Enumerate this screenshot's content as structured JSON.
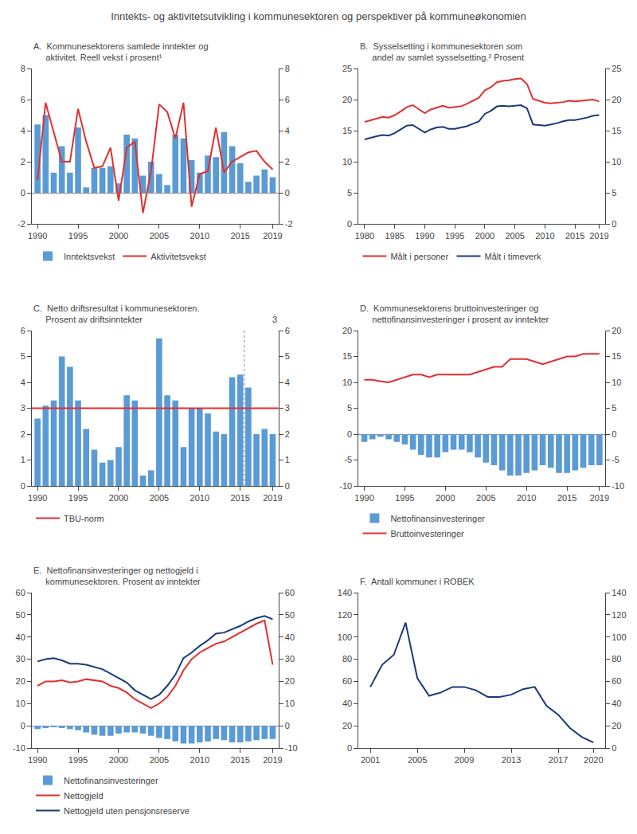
{
  "title": "Inntekts- og aktivitetsutvikling i kommunesektoren og perspektiver på kommuneøkonomien",
  "chart_data": [
    {
      "type": "bar",
      "title": "A.  Kommunesektorens samlede inntekter og\n     aktivitet. Reell vekst i prosent¹",
      "x": [
        1990,
        1991,
        1992,
        1993,
        1994,
        1995,
        1996,
        1997,
        1998,
        1999,
        2000,
        2001,
        2002,
        2003,
        2004,
        2005,
        2006,
        2007,
        2008,
        2009,
        2010,
        2011,
        2012,
        2013,
        2014,
        2015,
        2016,
        2017,
        2018,
        2019
      ],
      "xlim": [
        1989.3,
        2019.7
      ],
      "xticks": [
        1990,
        1995,
        2000,
        2005,
        2010,
        2015,
        2019
      ],
      "ylim": [
        -2,
        8
      ],
      "yticks": [
        -2,
        0,
        2,
        4,
        6,
        8
      ],
      "y2lim": [
        -2,
        8
      ],
      "y2ticks": [
        -2,
        0,
        2,
        4,
        6,
        8
      ],
      "grid": false,
      "series": [
        {
          "name": "Inntektsvekst",
          "type": "bar",
          "color": "#5b9bd5",
          "values": [
            4.4,
            5.0,
            1.3,
            3.0,
            1.3,
            4.2,
            0.35,
            1.6,
            1.6,
            1.7,
            0.6,
            3.75,
            3.5,
            1.1,
            2.0,
            1.2,
            0.5,
            3.75,
            3.5,
            2.1,
            1.3,
            2.4,
            2.3,
            3.9,
            3.0,
            1.9,
            0.7,
            1.1,
            1.5,
            1.0
          ]
        },
        {
          "name": "Aktivitetsvekst",
          "type": "line",
          "color": "#e03030",
          "axis": "y2",
          "values": [
            0.8,
            5.8,
            3.9,
            2.0,
            2.0,
            5.4,
            3.3,
            1.6,
            1.7,
            2.9,
            -0.5,
            2.9,
            3.3,
            -1.3,
            1.4,
            5.7,
            5.2,
            3.5,
            5.8,
            -0.9,
            1.2,
            1.4,
            4.2,
            1.3,
            2.0,
            2.3,
            2.6,
            2.7,
            2.0,
            1.5
          ]
        }
      ]
    },
    {
      "type": "line",
      "title": "B.  Sysselsetting i kommunesektoren som\n     andel av samlet sysselsetting.² Prosent",
      "x": [
        1980,
        1981,
        1982,
        1983,
        1984,
        1985,
        1986,
        1987,
        1988,
        1989,
        1990,
        1991,
        1992,
        1993,
        1994,
        1995,
        1996,
        1997,
        1998,
        1999,
        2000,
        2001,
        2002,
        2003,
        2004,
        2005,
        2006,
        2007,
        2008,
        2009,
        2010,
        2011,
        2012,
        2013,
        2014,
        2015,
        2016,
        2017,
        2018,
        2019
      ],
      "xlim": [
        1979,
        2020
      ],
      "xticks": [
        1980,
        1985,
        1990,
        1995,
        2000,
        2005,
        2010,
        2015,
        2019
      ],
      "ylim": [
        0,
        25
      ],
      "yticks": [
        0,
        5,
        10,
        15,
        20,
        25
      ],
      "y2lim": [
        0,
        25
      ],
      "y2ticks": [
        0,
        5,
        10,
        15,
        20,
        25
      ],
      "grid": false,
      "series": [
        {
          "name": "Målt i personer",
          "type": "line",
          "color": "#e03030",
          "values": [
            16.4,
            16.7,
            17.0,
            17.2,
            17.1,
            17.5,
            18.1,
            18.8,
            19.1,
            18.5,
            17.8,
            18.4,
            18.7,
            19.0,
            18.7,
            18.8,
            18.9,
            19.3,
            19.8,
            20.3,
            21.5,
            22.0,
            22.8,
            23.0,
            23.1,
            23.3,
            23.4,
            22.5,
            20.1,
            19.8,
            19.5,
            19.4,
            19.5,
            19.6,
            19.8,
            19.7,
            19.8,
            19.9,
            20.0,
            19.7
          ]
        },
        {
          "name": "Målt i timeverk",
          "type": "line",
          "color": "#1a3a7a",
          "values": [
            13.6,
            13.9,
            14.1,
            14.3,
            14.2,
            14.6,
            15.2,
            15.8,
            15.9,
            15.3,
            14.7,
            15.2,
            15.5,
            15.6,
            15.3,
            15.3,
            15.5,
            15.7,
            16.1,
            16.5,
            17.7,
            18.2,
            18.9,
            19.0,
            18.9,
            19.0,
            19.1,
            18.6,
            16.0,
            15.9,
            15.8,
            16.0,
            16.2,
            16.5,
            16.7,
            16.7,
            16.9,
            17.1,
            17.4,
            17.5
          ]
        }
      ]
    },
    {
      "type": "bar",
      "title": "C.  Netto driftsresultat i kommunesektoren.\n     Prosent av driftsinntekter",
      "x": [
        1990,
        1991,
        1992,
        1993,
        1994,
        1995,
        1996,
        1997,
        1998,
        1999,
        2000,
        2001,
        2002,
        2003,
        2004,
        2005,
        2006,
        2007,
        2008,
        2009,
        2010,
        2011,
        2012,
        2013,
        2014,
        2015,
        2016,
        2017,
        2018,
        2019
      ],
      "xlim": [
        1989.3,
        2019.7
      ],
      "xticks": [
        1990,
        1995,
        2000,
        2005,
        2010,
        2015,
        2019
      ],
      "ylim": [
        0,
        6
      ],
      "yticks": [
        0,
        1,
        2,
        3,
        4,
        5,
        6
      ],
      "y2lim": [
        0,
        6
      ],
      "y2ticks": [
        0,
        1,
        2,
        3,
        4,
        5,
        6
      ],
      "grid": false,
      "series": [
        {
          "type": "bar",
          "color": "#5b9bd5",
          "values": [
            2.6,
            3.1,
            3.3,
            5.0,
            4.6,
            3.3,
            2.2,
            1.4,
            0.9,
            1.0,
            1.5,
            3.5,
            3.3,
            0.4,
            0.6,
            5.7,
            3.5,
            3.3,
            1.5,
            3.0,
            3.0,
            2.8,
            2.1,
            2.0,
            4.2,
            4.3,
            3.8,
            2.0,
            2.2,
            2.0
          ]
        }
      ],
      "hlines": [
        {
          "value": 3.0,
          "name": "TBU-norm",
          "color": "#e03030"
        }
      ],
      "vlines": [
        {
          "value": 2015.5,
          "line_style": "dotted",
          "color": "#888888"
        }
      ],
      "annotations": [
        {
          "text": "3"
        }
      ]
    },
    {
      "type": "bar",
      "title": "D.  Kommunesektorens bruttoinvesteringer og\n     nettofinansinvesteringer i prosent av inntekter",
      "x": [
        1990,
        1991,
        1992,
        1993,
        1994,
        1995,
        1996,
        1997,
        1998,
        1999,
        2000,
        2001,
        2002,
        2003,
        2004,
        2005,
        2006,
        2007,
        2008,
        2009,
        2010,
        2011,
        2012,
        2013,
        2014,
        2015,
        2016,
        2017,
        2018,
        2019
      ],
      "xlim": [
        1989.3,
        2019.7
      ],
      "xticks": [
        1990,
        1995,
        2000,
        2005,
        2010,
        2015,
        2019
      ],
      "ylim": [
        -10,
        20
      ],
      "yticks": [
        -10,
        -5,
        0,
        5,
        10,
        15,
        20
      ],
      "y2lim": [
        -10,
        20
      ],
      "y2ticks": [
        -10,
        -5,
        0,
        5,
        10,
        15,
        20
      ],
      "grid": false,
      "series": [
        {
          "name": "Nettofinansinvesteringer",
          "type": "bar",
          "color": "#5b9bd5",
          "values": [
            -1.5,
            -1.0,
            -0.5,
            -1.0,
            -1.5,
            -2.0,
            -3.0,
            -4.0,
            -4.5,
            -4.5,
            -3.5,
            -3.0,
            -3.0,
            -3.5,
            -4.5,
            -5.5,
            -6.0,
            -7.0,
            -8.0,
            -8.0,
            -7.5,
            -7.0,
            -6.0,
            -6.5,
            -7.5,
            -7.5,
            -7.0,
            -6.5,
            -6.0,
            -6.0
          ]
        },
        {
          "name": "Bruttoinvesteringer",
          "type": "line",
          "color": "#e03030",
          "axis": "y2",
          "values": [
            10.5,
            10.5,
            10.2,
            10.0,
            10.5,
            11.0,
            11.5,
            11.5,
            11.0,
            11.5,
            11.5,
            11.5,
            11.5,
            11.5,
            12.0,
            12.5,
            13.0,
            13.0,
            14.5,
            14.5,
            14.5,
            14.0,
            13.5,
            14.0,
            14.5,
            15.0,
            15.0,
            15.5,
            15.5,
            15.5
          ]
        }
      ]
    },
    {
      "type": "bar",
      "title": "E.  Nettofinansinvesteringer og nettogjeld i\n     kommunesektoren. Prosent av inntekter",
      "x": [
        1990,
        1991,
        1992,
        1993,
        1994,
        1995,
        1996,
        1997,
        1998,
        1999,
        2000,
        2001,
        2002,
        2003,
        2004,
        2005,
        2006,
        2007,
        2008,
        2009,
        2010,
        2011,
        2012,
        2013,
        2014,
        2015,
        2016,
        2017,
        2018,
        2019
      ],
      "xlim": [
        1989.3,
        2019.7
      ],
      "xticks": [
        1990,
        1995,
        2000,
        2005,
        2010,
        2015,
        2019
      ],
      "ylim": [
        -10,
        60
      ],
      "yticks": [
        -10,
        0,
        10,
        20,
        30,
        40,
        50,
        60
      ],
      "y2lim": [
        -10,
        60
      ],
      "y2ticks": [
        -10,
        0,
        10,
        20,
        30,
        40,
        50,
        60
      ],
      "grid": false,
      "series": [
        {
          "name": "Nettofinansinvesteringer",
          "type": "bar",
          "color": "#5b9bd5",
          "values": [
            -1.5,
            -1.0,
            -0.5,
            -1.0,
            -1.5,
            -2.0,
            -3.0,
            -4.0,
            -4.5,
            -4.5,
            -3.5,
            -3.0,
            -3.0,
            -3.5,
            -4.5,
            -5.5,
            -6.0,
            -7.0,
            -8.0,
            -8.0,
            -7.5,
            -7.0,
            -6.0,
            -6.5,
            -7.5,
            -7.5,
            -7.0,
            -6.5,
            -6.0,
            -6.0
          ]
        },
        {
          "name": "Nettogjeld",
          "type": "line",
          "color": "#e03030",
          "axis": "y2",
          "values": [
            18.0,
            20.0,
            20.0,
            20.5,
            19.5,
            20.0,
            21.0,
            20.5,
            20.0,
            18.0,
            17.0,
            15.0,
            12.0,
            10.0,
            8.0,
            10.0,
            13.0,
            18.0,
            25.0,
            30.0,
            33.0,
            35.0,
            37.0,
            38.0,
            40.0,
            42.0,
            44.0,
            46.0,
            47.5,
            27.5
          ]
        },
        {
          "name": "Nettogjeld uten pensjonsreserve",
          "type": "line",
          "color": "#1a3a7a",
          "axis": "y2",
          "values": [
            29.0,
            30.0,
            30.5,
            29.5,
            28.0,
            28.0,
            27.5,
            26.5,
            25.5,
            23.5,
            21.5,
            19.5,
            16.0,
            14.0,
            12.0,
            14.0,
            18.0,
            23.0,
            30.5,
            33.0,
            36.0,
            38.5,
            41.5,
            42.0,
            43.5,
            45.0,
            47.0,
            48.5,
            49.5,
            48.0
          ]
        }
      ]
    },
    {
      "type": "line",
      "title": "F.  Antall kommuner i ROBEK",
      "x": [
        2001,
        2002,
        2003,
        2004,
        2005,
        2006,
        2007,
        2008,
        2009,
        2010,
        2011,
        2012,
        2013,
        2014,
        2015,
        2016,
        2017,
        2018,
        2019,
        2020
      ],
      "xlim": [
        2000,
        2021
      ],
      "xticks": [
        2001,
        2005,
        2009,
        2013,
        2017,
        2020
      ],
      "ylim": [
        0,
        140
      ],
      "yticks": [
        0,
        20,
        40,
        60,
        80,
        100,
        120,
        140
      ],
      "y2lim": [
        0,
        140
      ],
      "y2ticks": [
        0,
        20,
        40,
        60,
        80,
        100,
        120,
        140
      ],
      "grid": false,
      "series": [
        {
          "type": "line",
          "color": "#1a3a7a",
          "values": [
            55,
            75,
            84,
            113,
            63,
            47,
            50,
            55,
            55,
            52,
            46,
            46,
            48,
            53,
            55,
            38,
            30,
            18,
            10,
            5
          ]
        }
      ]
    }
  ]
}
